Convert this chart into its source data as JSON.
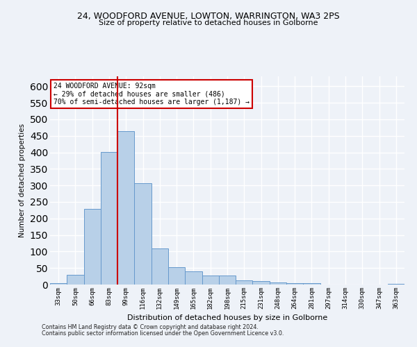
{
  "title_line1": "24, WOODFORD AVENUE, LOWTON, WARRINGTON, WA3 2PS",
  "title_line2": "Size of property relative to detached houses in Golborne",
  "xlabel": "Distribution of detached houses by size in Golborne",
  "ylabel": "Number of detached properties",
  "categories": [
    "33sqm",
    "50sqm",
    "66sqm",
    "83sqm",
    "99sqm",
    "116sqm",
    "132sqm",
    "149sqm",
    "165sqm",
    "182sqm",
    "198sqm",
    "215sqm",
    "231sqm",
    "248sqm",
    "264sqm",
    "281sqm",
    "297sqm",
    "314sqm",
    "330sqm",
    "347sqm",
    "363sqm"
  ],
  "values": [
    5,
    30,
    228,
    402,
    465,
    307,
    110,
    53,
    40,
    27,
    27,
    13,
    11,
    6,
    5,
    5,
    0,
    0,
    0,
    0,
    2
  ],
  "bar_color": "#b8d0e8",
  "bar_edge_color": "#6699cc",
  "vline_x_index": 3.5,
  "vline_color": "#cc0000",
  "annotation_text": "24 WOODFORD AVENUE: 92sqm\n← 29% of detached houses are smaller (486)\n70% of semi-detached houses are larger (1,187) →",
  "annotation_box_color": "#ffffff",
  "annotation_border_color": "#cc0000",
  "ylim": [
    0,
    630
  ],
  "yticks": [
    0,
    50,
    100,
    150,
    200,
    250,
    300,
    350,
    400,
    450,
    500,
    550,
    600
  ],
  "background_color": "#eef2f8",
  "grid_color": "#ffffff",
  "footer_line1": "Contains HM Land Registry data © Crown copyright and database right 2024.",
  "footer_line2": "Contains public sector information licensed under the Open Government Licence v3.0."
}
